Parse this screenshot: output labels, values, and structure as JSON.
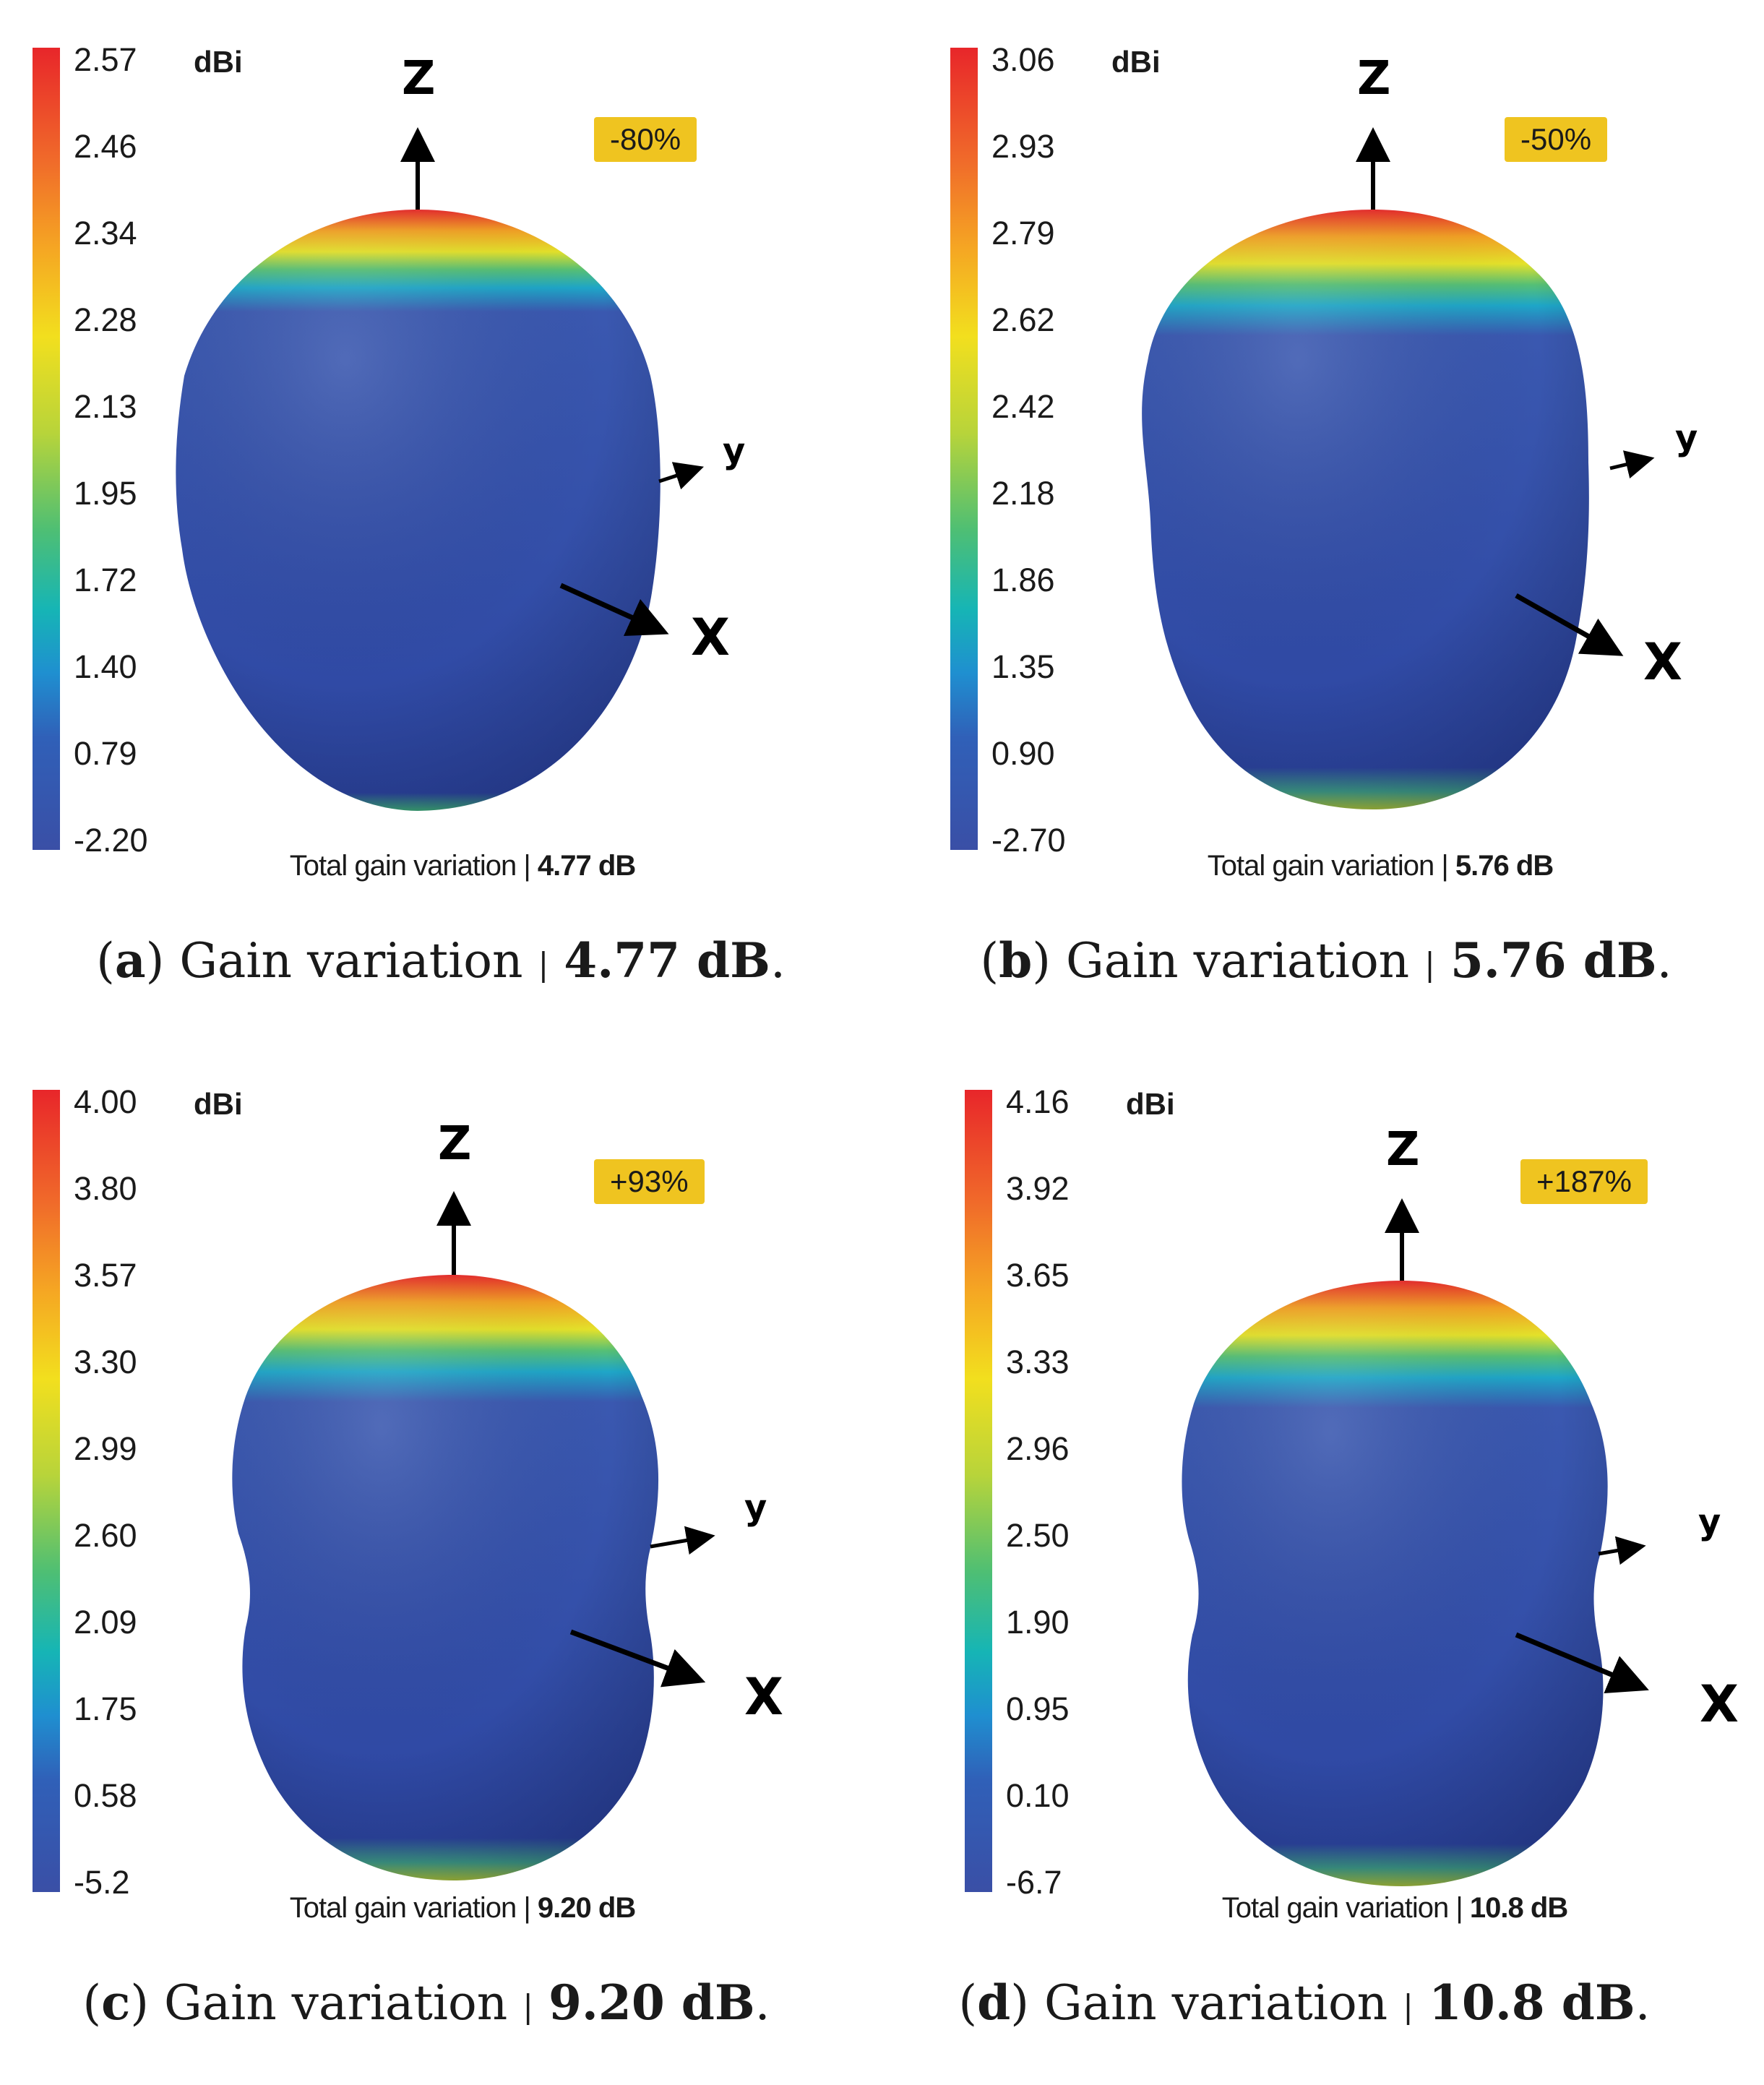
{
  "panels": [
    {
      "ticks": [
        "2.57",
        "2.46",
        "2.34",
        "2.28",
        "2.13",
        "1.95",
        "1.72",
        "1.40",
        "0.79",
        "-2.20"
      ],
      "unit": "dBi",
      "badge": "-80%",
      "gain_text": "Total gain variation | ",
      "gain_value": "4.77 dB",
      "caption_letter": "a",
      "caption_text": "Gain variation",
      "caption_value": "4.77 dB"
    },
    {
      "ticks": [
        "3.06",
        "2.93",
        "2.79",
        "2.62",
        "2.42",
        "2.18",
        "1.86",
        "1.35",
        "0.90",
        "-2.70"
      ],
      "unit": "dBi",
      "badge": "-50%",
      "gain_text": "Total gain variation | ",
      "gain_value": "5.76 dB",
      "caption_letter": "b",
      "caption_text": "Gain variation",
      "caption_value": "5.76 dB"
    },
    {
      "ticks": [
        "4.00",
        "3.80",
        "3.57",
        "3.30",
        "2.99",
        "2.60",
        "2.09",
        "1.75",
        "0.58",
        "-5.2"
      ],
      "unit": "dBi",
      "badge": "+93%",
      "gain_text": "Total gain variation | ",
      "gain_value": "9.20 dB",
      "caption_letter": "c",
      "caption_text": "Gain variation",
      "caption_value": "9.20 dB"
    },
    {
      "ticks": [
        "4.16",
        "3.92",
        "3.65",
        "3.33",
        "2.96",
        "2.50",
        "1.90",
        "0.95",
        "0.10",
        "-6.7"
      ],
      "unit": "dBi",
      "badge": "+187%",
      "gain_text": "Total gain variation | ",
      "gain_value": "10.8 dB",
      "caption_letter": "d",
      "caption_text": "Gain variation",
      "caption_value": "10.8 dB"
    }
  ],
  "axes": {
    "z": "Z",
    "y": "y",
    "x": "X"
  },
  "separator": "|",
  "colors": {
    "badge": "#efc420",
    "lobe_blue": "#2f4aa8",
    "lobe_top": "#e8262a"
  }
}
